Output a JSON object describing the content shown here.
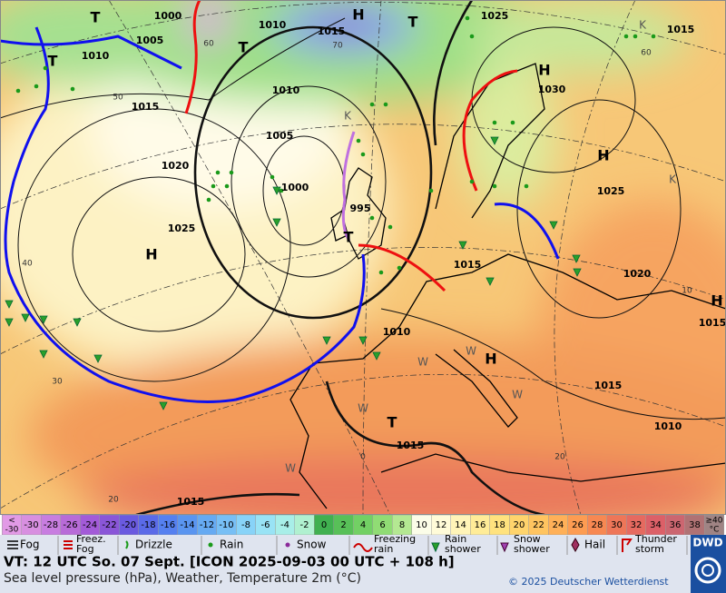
{
  "map": {
    "isobar_labels": [
      1000,
      1005,
      1010,
      1010,
      1015,
      1025,
      1015,
      1010,
      1015,
      1030,
      1005,
      1020,
      1000,
      995,
      1025,
      1025,
      1015,
      1020,
      1015,
      1010,
      1015,
      1010,
      1015,
      1015
    ],
    "pressure_centers": [
      "T",
      "H",
      "T",
      "T",
      "T",
      "H",
      "H",
      "H",
      "T",
      "H",
      "T",
      "H"
    ],
    "temperature_labels": [
      60,
      70,
      60,
      50,
      40,
      30,
      20,
      0,
      20,
      10
    ],
    "weather_letters": [
      "K",
      "K",
      "K",
      "W",
      "W",
      "W",
      "W",
      "W"
    ]
  },
  "color_scale": {
    "low_end": [
      "<",
      "-30"
    ],
    "labels": [
      -30,
      -28,
      -26,
      -24,
      -22,
      -20,
      -18,
      -16,
      -14,
      -12,
      -10,
      -8,
      -6,
      -4,
      -2,
      0,
      2,
      4,
      6,
      8,
      10,
      12,
      14,
      16,
      18,
      20,
      22,
      24,
      26,
      28,
      30,
      32,
      34,
      36,
      38
    ],
    "high_end": [
      "≥40",
      "°C"
    ],
    "colors": [
      "#e29ae6",
      "#d88fe0",
      "#c87de0",
      "#b86bd8",
      "#a35bd8",
      "#8a56d8",
      "#6a5ae0",
      "#5a6ae8",
      "#5580f0",
      "#5a95f0",
      "#66aaf2",
      "#77bff5",
      "#88d3f8",
      "#99e3f5",
      "#a8eee8",
      "#b0f0d0",
      "#40b050",
      "#58c058",
      "#72d064",
      "#90dc74",
      "#b4e892",
      "#fbfde8",
      "#fffbd8",
      "#fff4b8",
      "#ffec98",
      "#ffe27e",
      "#ffd46c",
      "#ffc460",
      "#ffb058",
      "#fd9c52",
      "#f78852",
      "#ee7658",
      "#e66a60",
      "#dc6068",
      "#cc6670",
      "#b07274",
      "#a08484"
    ]
  },
  "legend": [
    [
      "Fog"
    ],
    [
      "Freez.",
      "Fog"
    ],
    [
      "Drizzle"
    ],
    [
      "Rain"
    ],
    [
      "Snow"
    ],
    [
      "Freezing",
      "rain"
    ],
    [
      "Rain",
      "shower"
    ],
    [
      "Snow",
      "shower"
    ],
    [
      "Hail"
    ],
    [
      "Thunder",
      "storm"
    ]
  ],
  "footer": {
    "valid_time": "VT: 12 UTC So.  07 Sept. [ICON 2025-09-03  00 UTC + 108 h]",
    "parameters": "Sea level pressure (hPa), Weather, Temperature 2m (°C)",
    "copyright": "© 2025 Deutscher Wetterdienst",
    "logo": "DWD"
  }
}
